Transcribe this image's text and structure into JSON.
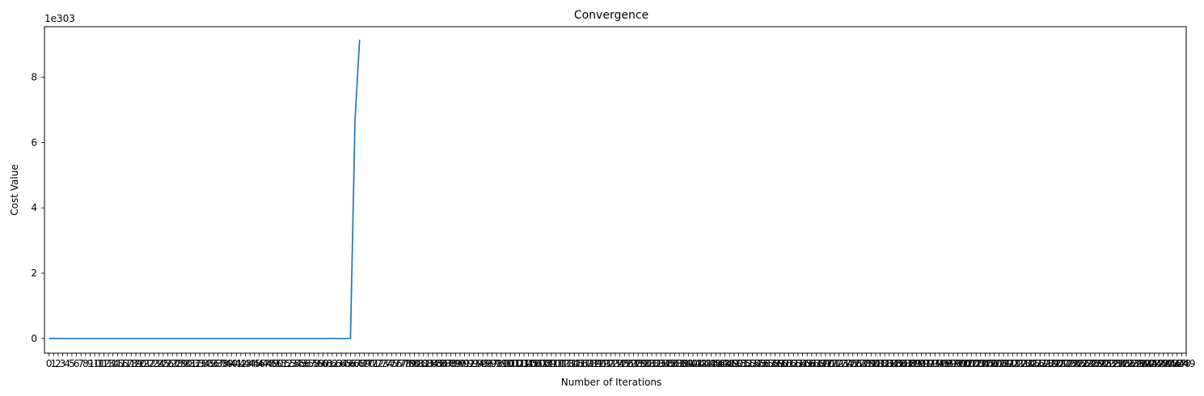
{
  "chart_data": {
    "type": "line",
    "title": "Convergence",
    "xlabel": "Number of Iterations",
    "ylabel": "Cost Value",
    "y_offset_label": "1e303",
    "xlim": [
      -1,
      249
    ],
    "ylim": [
      -0.45,
      9.55
    ],
    "y_ticks": [
      0,
      2,
      4,
      6,
      8
    ],
    "x_ticks_start": 0,
    "x_ticks_end": 249,
    "grid": false,
    "legend": "none",
    "series": [
      {
        "color": "#1f77b4",
        "points": [
          [
            0,
            0
          ],
          [
            66,
            0
          ],
          [
            67,
            6.7
          ],
          [
            68,
            9.15
          ]
        ]
      }
    ]
  }
}
